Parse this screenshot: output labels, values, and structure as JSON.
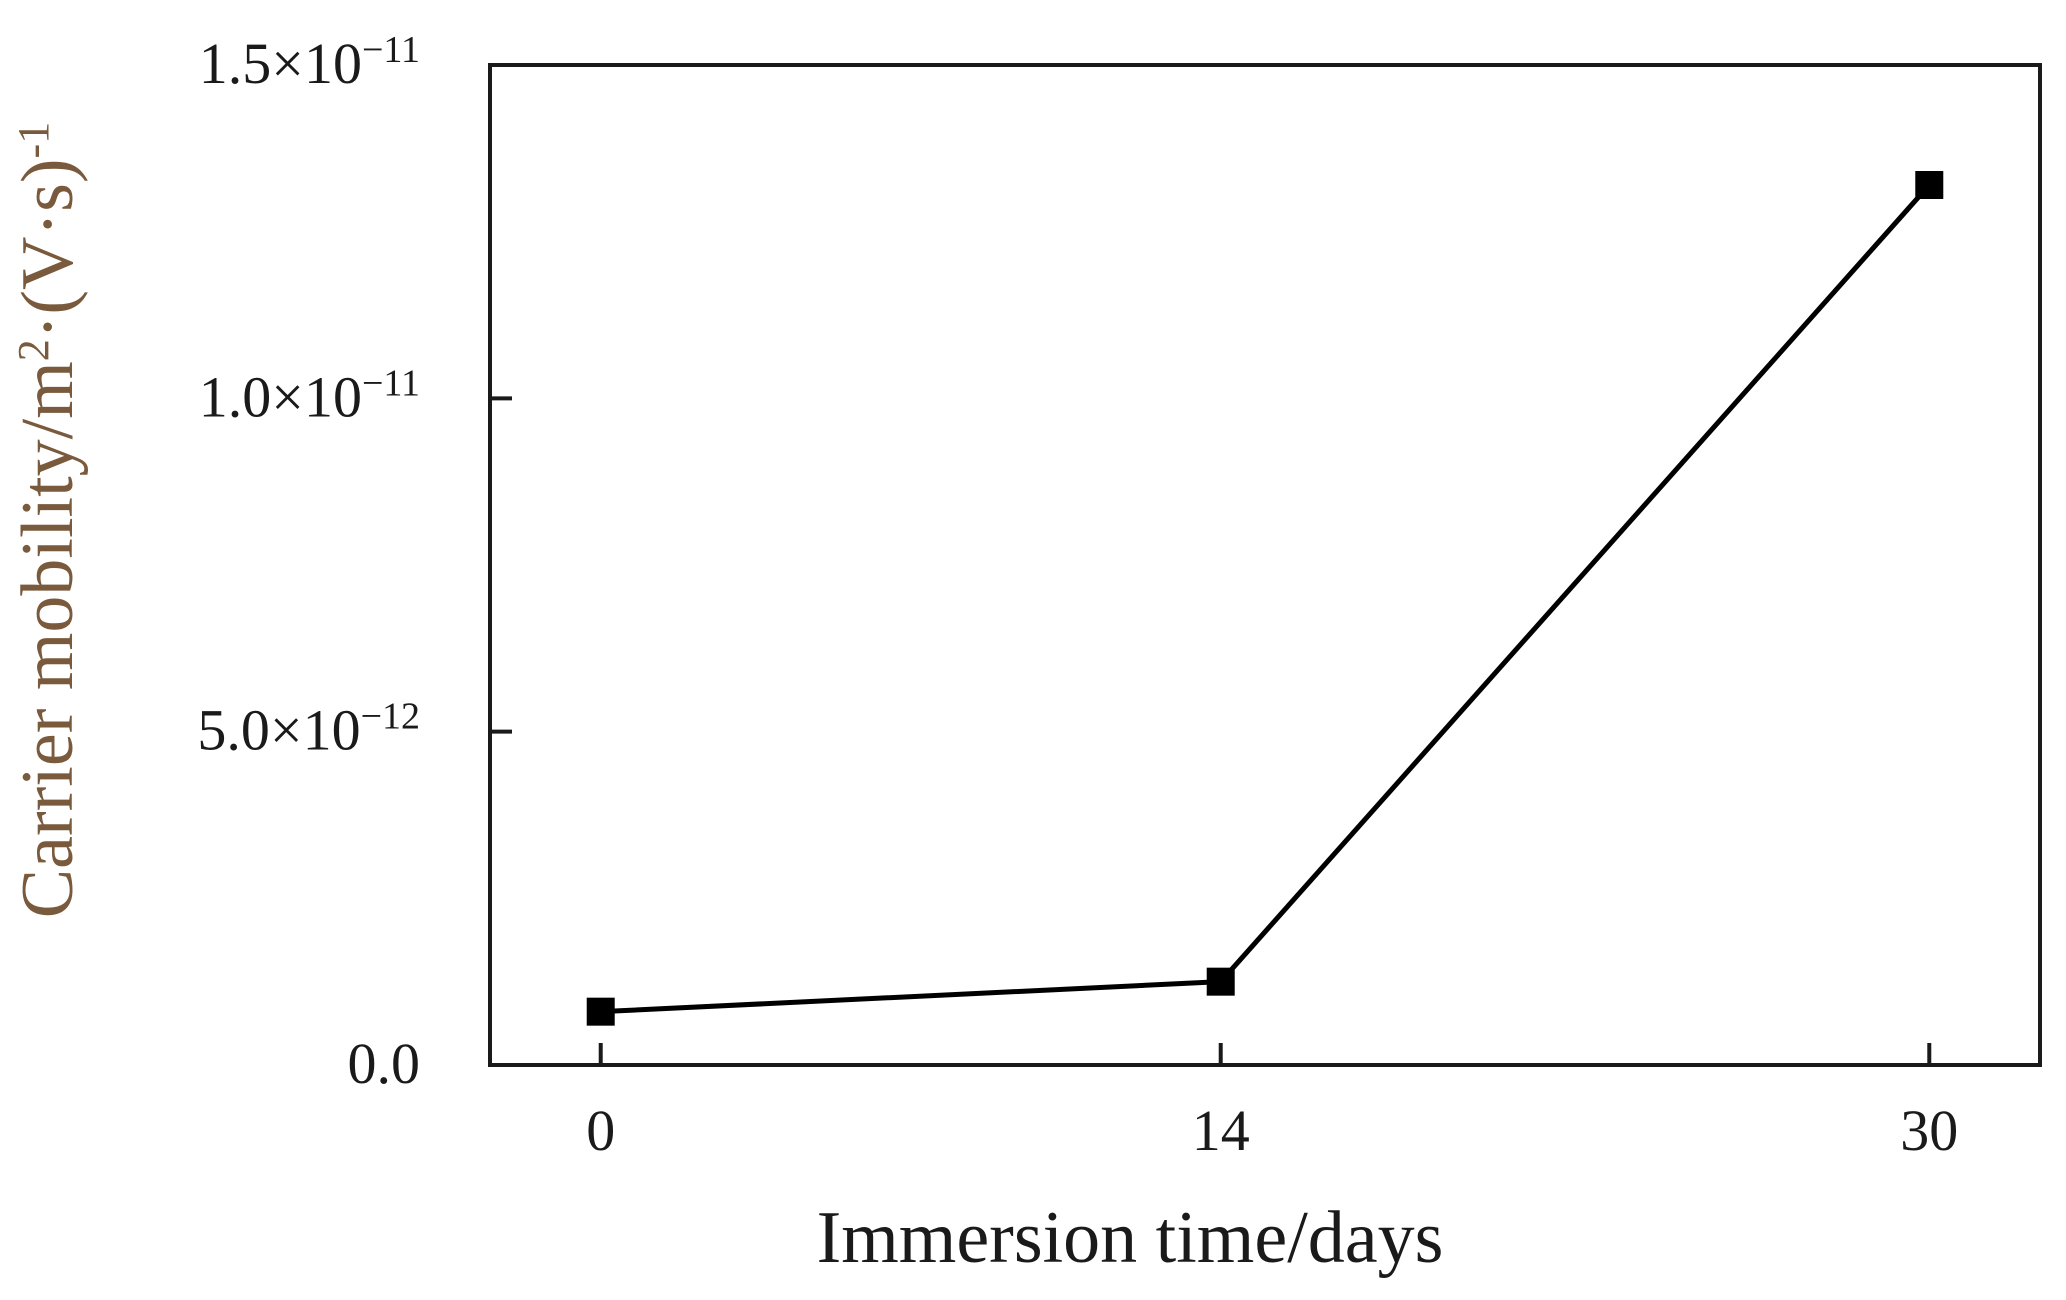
{
  "chart_data": {
    "type": "line",
    "title": "",
    "xlabel": "Immersion time/days",
    "ylabel": {
      "prefix": "Carrier mobility/m",
      "sup1": "2",
      "middle": "·(V·s)",
      "sup2": "-1"
    },
    "x": [
      0,
      14,
      30
    ],
    "series": [
      {
        "values": [
          8e-13,
          1.25e-12,
          1.32e-11
        ]
      }
    ],
    "xticks": [
      {
        "value": 0,
        "label": "0"
      },
      {
        "value": 14,
        "label": "14"
      },
      {
        "value": 30,
        "label": "30"
      }
    ],
    "yticks": [
      {
        "value": 0,
        "mantissa": "0.0",
        "times": "",
        "base": "",
        "exponent": ""
      },
      {
        "value": 5e-12,
        "mantissa": "5.0",
        "times": "×",
        "base": "10",
        "exponent": "−12"
      },
      {
        "value": 1e-11,
        "mantissa": "1.0",
        "times": "×",
        "base": "10",
        "exponent": "−11"
      },
      {
        "value": 1.5e-11,
        "mantissa": "1.5",
        "times": "×",
        "base": "10",
        "exponent": "−11"
      }
    ],
    "xlim": [
      -2.5,
      32.5
    ],
    "ylim": [
      0,
      1.5e-11
    ],
    "grid": false,
    "legend": "none",
    "colors": {
      "line": "#000000",
      "marker": "#000000",
      "axes": "#1a1a1a",
      "ylabel": "#7a5a3c",
      "text": "#1a1a1a"
    }
  }
}
